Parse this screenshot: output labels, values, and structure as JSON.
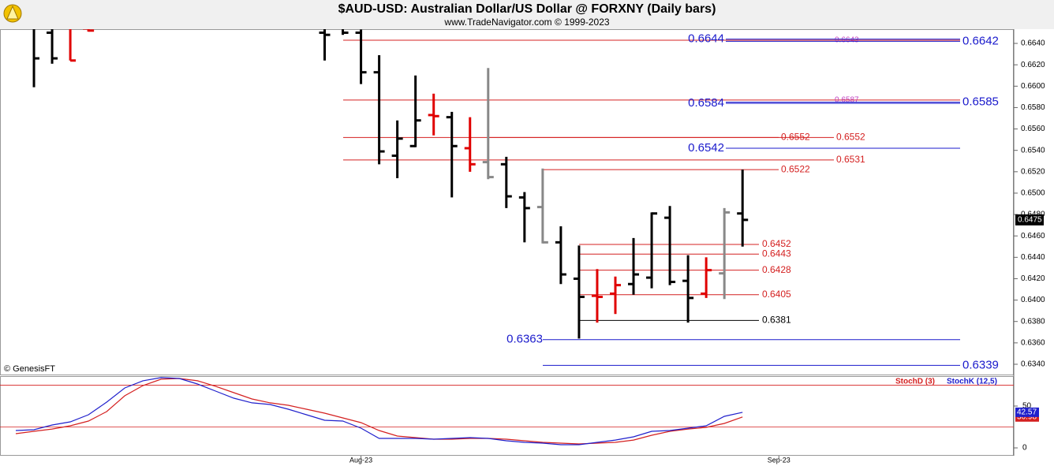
{
  "chart_data": [
    {
      "type": "ohlc",
      "title": "$AUD-USD:  Australian Dollar/US Dollar @ FORXNY  (Daily bars)",
      "subtitle": "www.TradeNavigator.com © 1999-2023",
      "annotation": "© GenesisFT",
      "categories": [
        null,
        null,
        null,
        null,
        null,
        null,
        null,
        null,
        null,
        null,
        null,
        null,
        null,
        null,
        null,
        null,
        null,
        null,
        null,
        "Aug-23",
        null,
        null,
        null,
        null,
        null,
        null,
        null,
        null,
        null,
        null,
        null,
        null,
        null,
        null,
        null,
        null,
        null,
        null,
        null,
        null,
        null,
        null,
        "Sep-23"
      ],
      "open": [
        null,
        0.6655,
        0.665,
        0.6656,
        0.6654,
        null,
        null,
        null,
        null,
        null,
        null,
        null,
        null,
        null,
        null,
        null,
        null,
        0.665,
        0.6655,
        0.665,
        0.6613,
        0.6535,
        0.6544,
        0.6573,
        0.6571,
        0.6542,
        0.6529,
        0.6527,
        0.6496,
        0.6487,
        0.6454,
        0.642,
        0.6404,
        0.6406,
        0.6415,
        0.6421,
        0.6477,
        0.6418,
        0.6406,
        0.6425,
        0.6481,
        null,
        null
      ],
      "high": [
        null,
        0.666,
        0.6658,
        0.6658,
        0.6655,
        null,
        null,
        null,
        null,
        null,
        null,
        null,
        null,
        null,
        null,
        null,
        null,
        0.666,
        0.6658,
        0.6653,
        0.6629,
        0.6568,
        0.661,
        0.6593,
        0.6576,
        0.6571,
        0.6617,
        0.6534,
        0.6501,
        0.6523,
        0.6469,
        0.6451,
        0.6429,
        0.6422,
        0.6458,
        0.6482,
        0.6488,
        0.6442,
        0.644,
        0.6486,
        0.6522,
        null,
        null
      ],
      "low": [
        null,
        0.6599,
        0.6621,
        0.6624,
        0.6651,
        null,
        null,
        null,
        null,
        null,
        null,
        null,
        null,
        null,
        null,
        null,
        null,
        0.6624,
        0.6648,
        0.6602,
        0.6527,
        0.6514,
        0.6543,
        0.6554,
        0.6496,
        0.652,
        0.6513,
        0.6486,
        0.6454,
        0.6453,
        0.6415,
        0.6364,
        0.6379,
        0.6387,
        0.6405,
        0.6411,
        0.6414,
        0.6379,
        0.6402,
        0.6401,
        0.645,
        null,
        null
      ],
      "close": [
        null,
        0.6626,
        0.6626,
        0.6624,
        0.6652,
        null,
        null,
        null,
        null,
        null,
        null,
        null,
        null,
        null,
        null,
        null,
        null,
        0.6648,
        0.665,
        0.6613,
        0.6539,
        0.6551,
        0.6568,
        0.6572,
        0.6544,
        0.6527,
        0.6515,
        0.6497,
        0.6486,
        0.6454,
        0.6424,
        0.6403,
        0.6403,
        0.6414,
        0.6424,
        0.6481,
        0.6417,
        0.6402,
        0.6428,
        0.6482,
        0.6475,
        null,
        null
      ],
      "colors": [
        null,
        "#000000",
        "#000000",
        "#e00000",
        "#e00000",
        null,
        null,
        null,
        null,
        null,
        null,
        null,
        null,
        null,
        null,
        null,
        null,
        "#000000",
        "#000000",
        "#000000",
        "#000000",
        "#000000",
        "#000000",
        "#e00000",
        "#000000",
        "#e00000",
        "#888888",
        "#000000",
        "#000000",
        "#888888",
        "#000000",
        "#000000",
        "#e00000",
        "#e00000",
        "#000000",
        "#000000",
        "#000000",
        "#000000",
        "#e00000",
        "#888888",
        "#000000",
        null,
        null
      ],
      "ylim": [
        0.63304,
        0.66533
      ],
      "yticks": [
        {
          "value": 0.634,
          "label": "0.6340"
        },
        {
          "value": 0.636,
          "label": "0.6360"
        },
        {
          "value": 0.638,
          "label": "0.6380"
        },
        {
          "value": 0.64,
          "label": "0.6400"
        },
        {
          "value": 0.642,
          "label": "0.6420"
        },
        {
          "value": 0.644,
          "label": "0.6440"
        },
        {
          "value": 0.646,
          "label": "0.6460"
        },
        {
          "value": 0.648,
          "label": "0.6480"
        },
        {
          "value": 0.65,
          "label": "0.6500"
        },
        {
          "value": 0.652,
          "label": "0.6520"
        },
        {
          "value": 0.654,
          "label": "0.6540"
        },
        {
          "value": 0.656,
          "label": "0.6560"
        },
        {
          "value": 0.658,
          "label": "0.6580"
        },
        {
          "value": 0.66,
          "label": "0.6600"
        },
        {
          "value": 0.662,
          "label": "0.6620"
        },
        {
          "value": 0.664,
          "label": "0.6640"
        }
      ],
      "levels": [
        {
          "value": 0.6643,
          "color": "#d42020",
          "label_color": "#c040c0"
        },
        {
          "value": 0.6644,
          "color": "#1a1acc",
          "label_color": "#1a1acc"
        },
        {
          "value": 0.6642,
          "color": "#1a1acc",
          "label_color": "#1a1acc"
        },
        {
          "value": 0.6587,
          "color": "#d42020",
          "label_color": "#c040c0"
        },
        {
          "value": 0.6584,
          "color": "#1a1acc",
          "label_color": "#1a1acc"
        },
        {
          "value": 0.6585,
          "color": "#1a1acc",
          "label_color": "#1a1acc"
        },
        {
          "value": 0.6552,
          "color": "#d42020",
          "label_color": "#d42020"
        },
        {
          "value": 0.6552,
          "color": "#d42020",
          "label_color": "#d42020"
        },
        {
          "value": 0.6542,
          "color": "#1a1acc",
          "label_color": "#1a1acc"
        },
        {
          "value": 0.6531,
          "color": "#d42020",
          "label_color": "#d42020"
        },
        {
          "value": 0.6522,
          "color": "#d42020",
          "label_color": "#d42020"
        },
        {
          "value": 0.6452,
          "color": "#d42020",
          "label_color": "#d42020"
        },
        {
          "value": 0.6443,
          "color": "#d42020",
          "label_color": "#d42020"
        },
        {
          "value": 0.6428,
          "color": "#d42020",
          "label_color": "#d42020"
        },
        {
          "value": 0.6405,
          "color": "#d42020",
          "label_color": "#d42020"
        },
        {
          "value": 0.6381,
          "color": "#000000",
          "label_color": "#000000"
        },
        {
          "value": 0.6363,
          "color": "#1a1acc",
          "label_color": "#1a1acc"
        },
        {
          "value": 0.6339,
          "color": "#1a1acc",
          "label_color": "#1a1acc"
        }
      ]
    },
    {
      "type": "line",
      "series": [
        {
          "name": "StochD (3)",
          "color": "#d42020",
          "values": [
            17.0,
            19.8,
            22.6,
            26.4,
            32.1,
            43.4,
            62.3,
            74.5,
            82.1,
            83.0,
            80.2,
            73.6,
            66.0,
            58.5,
            53.8,
            50.9,
            46.2,
            41.5,
            35.8,
            30.2,
            20.8,
            14.2,
            12.3,
            10.4,
            10.4,
            11.3,
            11.3,
            10.4,
            8.5,
            6.6,
            5.7,
            4.7,
            5.7,
            6.6,
            9.4,
            15.1,
            19.8,
            22.6,
            24.5,
            29.2,
            36.98,
            null,
            null
          ]
        },
        {
          "name": "StochK (12,5)",
          "color": "#2020cc",
          "values": [
            20.8,
            21.7,
            27.4,
            31.1,
            39.6,
            54.7,
            71.7,
            80.2,
            84.0,
            83.0,
            76.4,
            67.9,
            59.4,
            53.8,
            51.9,
            46.2,
            39.6,
            33.0,
            32.1,
            23.6,
            11.3,
            11.3,
            11.3,
            10.4,
            11.3,
            12.3,
            11.3,
            8.5,
            6.6,
            5.7,
            3.8,
            3.8,
            6.6,
            9.4,
            13.2,
            19.8,
            20.8,
            23.6,
            26.4,
            37.7,
            42.57,
            null,
            null
          ]
        }
      ],
      "ylim": [
        -9.4,
        85.8
      ],
      "yticks": [
        0,
        50
      ],
      "ref_lines": [
        75,
        25
      ],
      "ref_color": "#d42020"
    }
  ]
}
